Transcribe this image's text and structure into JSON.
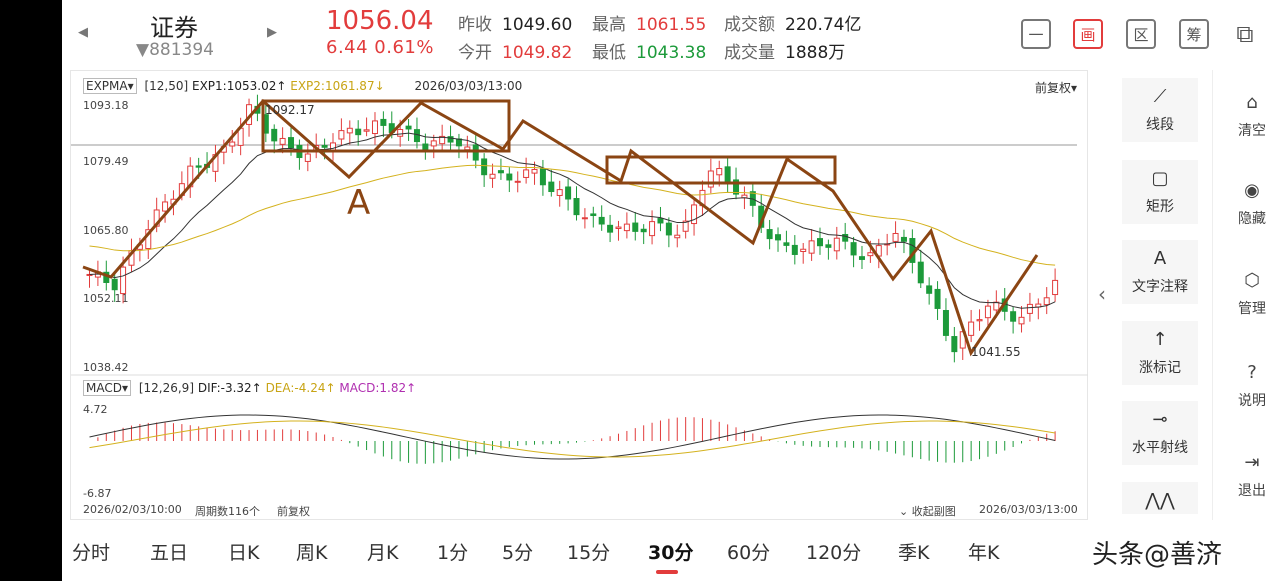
{
  "header": {
    "stock_name": "证券",
    "stock_code": "▼881394",
    "price": "1056.04",
    "change": "6.44  0.61%",
    "quotes": [
      {
        "label": "昨收",
        "value": "1049.60",
        "color": "#222222"
      },
      {
        "label": "今开",
        "value": "1049.82",
        "color": "#e23c3c"
      },
      {
        "label": "最高",
        "value": "1061.55",
        "color": "#e23c3c"
      },
      {
        "label": "最低",
        "value": "1043.38",
        "color": "#1c9a3a"
      },
      {
        "label": "成交额",
        "value": "220.74亿",
        "color": "#222222"
      },
      {
        "label": "成交量",
        "value": "1888万",
        "color": "#222222"
      }
    ],
    "tools": [
      "一",
      "画",
      "区",
      "筹",
      "⧉"
    ]
  },
  "chart": {
    "main_indicator": "EXPMA▾",
    "main_params": "[12,50]",
    "exp1": "EXP1:1053.02↑",
    "exp2": "EXP2:1061.87↓",
    "cursor_time": "2026/03/03/13:00",
    "adjust": "前复权▾",
    "y_labels": [
      "1093.18",
      "1079.49",
      "1065.80",
      "1052.11",
      "1038.42"
    ],
    "high_label": "1092.17",
    "low_label": "1041.55",
    "annotation_a": "A",
    "macd_indicator": "MACD▾",
    "macd_params": "[12,26,9]",
    "dif": "DIF:-3.32↑",
    "dea": "DEA:-4.24↑",
    "macd": "MACD:1.82↑",
    "macd_top": "4.72",
    "macd_bottom": "-6.87",
    "start_time": "2026/02/03/10:00",
    "period_count": "周期数116个",
    "adjust_bottom": "前复权",
    "collapse_sub": "收起副图",
    "end_time": "2026/03/03/13:00",
    "colors": {
      "up": "#e23c3c",
      "down": "#1c9a3a",
      "exp1": "#222222",
      "exp2": "#d4b21e",
      "drawing": "#8b4513"
    }
  },
  "chart_data": {
    "type": "candlestick",
    "ylim": [
      1038.42,
      1093.18
    ],
    "high": 1092.17,
    "low": 1041.55,
    "last_close": 1056.04,
    "exp1_last": 1053.02,
    "exp2_last": 1061.87,
    "macd_range": [
      -6.87,
      4.72
    ],
    "dif_last": -3.32,
    "dea_last": -4.24,
    "macd_last": 1.82,
    "periods": 116,
    "start": "2026/02/03/10:00",
    "end": "2026/03/03/13:00"
  },
  "draw_tools": [
    {
      "icon": "line-segment-icon",
      "glyph": "⟋",
      "label": "线段"
    },
    {
      "icon": "rectangle-icon",
      "glyph": "▢",
      "label": "矩形"
    },
    {
      "icon": "text-icon",
      "glyph": "A",
      "label": "文字注释"
    },
    {
      "icon": "arrow-up-icon",
      "glyph": "↑",
      "label": "涨标记"
    },
    {
      "icon": "horizontal-ray-icon",
      "glyph": "⊸",
      "label": "水平射线"
    }
  ],
  "right_tools": [
    {
      "icon": "broom-icon",
      "glyph": "⌂",
      "label": "清空"
    },
    {
      "icon": "eye-icon",
      "glyph": "◉",
      "label": "隐藏"
    },
    {
      "icon": "gear-icon",
      "glyph": "⬡",
      "label": "管理"
    },
    {
      "icon": "help-icon",
      "glyph": "?",
      "label": "说明"
    },
    {
      "icon": "exit-icon",
      "glyph": "⇥",
      "label": "退出"
    }
  ],
  "periods": [
    "分时",
    "五日",
    "日K",
    "周K",
    "月K",
    "1分",
    "5分",
    "15分",
    "30分",
    "60分",
    "120分",
    "季K",
    "年K"
  ],
  "active_period": "30分",
  "watermark": "头条@善济"
}
